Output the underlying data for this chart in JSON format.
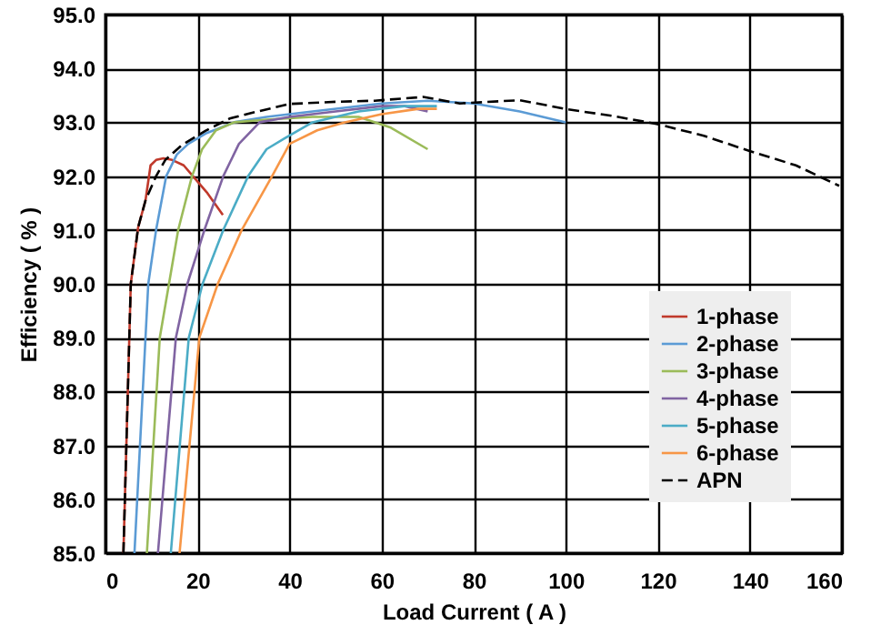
{
  "chart_data": {
    "type": "line",
    "xlabel": "Load Current ( A )",
    "ylabel": "Efficiency ( % )",
    "xlim": [
      0,
      160
    ],
    "xticks": [
      0,
      20,
      40,
      60,
      80,
      100,
      120,
      140,
      160
    ],
    "ylim": [
      85,
      95
    ],
    "yticks": [
      {
        "value": 85,
        "label": "85.0"
      },
      {
        "value": 86,
        "label": "86.0"
      },
      {
        "value": 87,
        "label": "87.0"
      },
      {
        "value": 88,
        "label": "88.0"
      },
      {
        "value": 89,
        "label": "89.0"
      },
      {
        "value": 90,
        "label": "90.0"
      },
      {
        "value": 91,
        "label": "91.0"
      },
      {
        "value": 92,
        "label": "92.0"
      },
      {
        "value": 93,
        "label": "93.0"
      },
      {
        "value": 94,
        "label": "94.0"
      },
      {
        "value": 95,
        "label": "95.0"
      }
    ],
    "grid": true,
    "legend": "bottom right",
    "marker": "none",
    "series": [
      {
        "name": "1-phase",
        "color": "#c0392b",
        "line_style": "solid",
        "x": [
          3.9,
          5.5,
          7.1,
          8.7,
          9.8,
          11,
          12.6,
          14.5,
          17,
          19,
          22,
          25.5
        ],
        "values": [
          85,
          90,
          91.05,
          91.55,
          92.2,
          92.3,
          92.33,
          92.3,
          92.2,
          92.0,
          91.7,
          91.28
        ]
      },
      {
        "name": "2-phase",
        "color": "#5b9bd5",
        "line_style": "solid",
        "x": [
          6.3,
          8.7,
          9.3,
          11,
          13.2,
          15.5,
          18,
          22,
          28,
          35,
          45,
          60,
          70,
          80,
          90,
          100
        ],
        "values": [
          85,
          89,
          90,
          91,
          92,
          92.4,
          92.6,
          92.8,
          93.0,
          93.1,
          93.2,
          93.35,
          93.4,
          93.35,
          93.2,
          93.0
        ]
      },
      {
        "name": "3-phase",
        "color": "#9bbb59",
        "line_style": "solid",
        "x": [
          9,
          11.8,
          13.8,
          15.8,
          18.8,
          21,
          24,
          28,
          35,
          45,
          55,
          62,
          70
        ],
        "values": [
          85,
          89,
          90,
          91,
          92,
          92.5,
          92.85,
          93.0,
          93.05,
          93.1,
          93.1,
          92.9,
          92.5
        ]
      },
      {
        "name": "4-phase",
        "color": "#8064a2",
        "line_style": "solid",
        "x": [
          11.4,
          15.3,
          17.8,
          21.5,
          25.6,
          29,
          33.5,
          40,
          50,
          60,
          65,
          70
        ],
        "values": [
          85,
          89,
          90,
          91,
          92,
          92.6,
          93.0,
          93.1,
          93.2,
          93.3,
          93.3,
          93.2
        ]
      },
      {
        "name": "5-phase",
        "color": "#4bacc6",
        "line_style": "solid",
        "x": [
          14.2,
          18.1,
          21.1,
          25.6,
          31,
          35,
          38.9,
          45,
          55,
          65,
          72
        ],
        "values": [
          85,
          89,
          90,
          91,
          92,
          92.5,
          92.7,
          93.0,
          93.2,
          93.3,
          93.3
        ]
      },
      {
        "name": "6-phase",
        "color": "#f79646",
        "line_style": "solid",
        "x": [
          16.1,
          20.4,
          24.4,
          29.6,
          36.2,
          40,
          46,
          52,
          60,
          68,
          72
        ],
        "values": [
          85,
          89,
          90,
          91,
          92,
          92.6,
          92.85,
          93.0,
          93.15,
          93.25,
          93.25
        ]
      },
      {
        "name": "APN",
        "color": "#000000",
        "line_style": "dashed",
        "x": [
          3.9,
          5.5,
          7.1,
          8.7,
          11,
          13,
          16.5,
          21.7,
          27,
          33,
          40,
          50,
          58.5,
          69,
          77,
          90,
          100.4,
          110,
          119.7,
          130,
          139.8,
          150,
          159.4
        ],
        "values": [
          85,
          90,
          91.05,
          91.55,
          92.0,
          92.3,
          92.57,
          92.84,
          93.07,
          93.2,
          93.34,
          93.38,
          93.4,
          93.47,
          93.35,
          93.41,
          93.24,
          93.12,
          92.97,
          92.75,
          92.47,
          92.2,
          91.82
        ]
      }
    ]
  }
}
